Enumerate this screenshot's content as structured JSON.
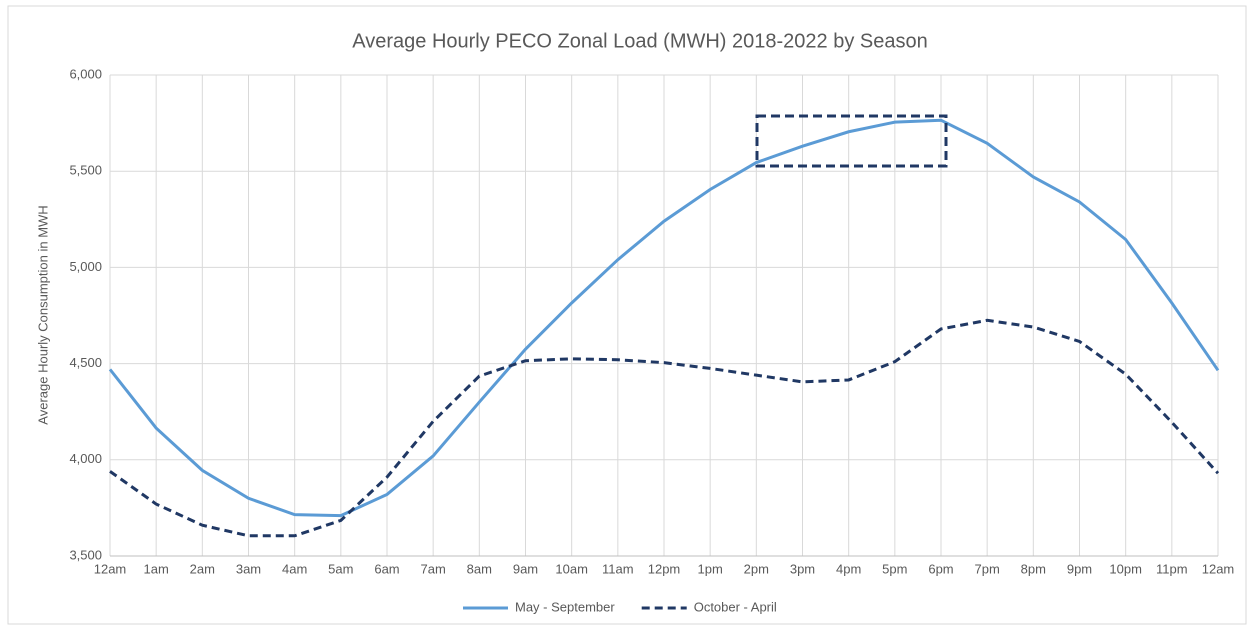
{
  "chart_data": {
    "type": "line",
    "title": "Average Hourly PECO Zonal Load (MWH) 2018-2022 by Season",
    "ylabel": "Average Hourly Consumption in MWH",
    "categories": [
      "12am",
      "1am",
      "2am",
      "3am",
      "4am",
      "5am",
      "6am",
      "7am",
      "8am",
      "9am",
      "10am",
      "11am",
      "12pm",
      "1pm",
      "2pm",
      "3pm",
      "4pm",
      "5pm",
      "6pm",
      "7pm",
      "8pm",
      "9pm",
      "10pm",
      "11pm",
      "12am"
    ],
    "series": [
      {
        "name": "May - September",
        "color": "#5b9bd5",
        "dash": false,
        "values": [
          4470,
          4165,
          3945,
          3800,
          3715,
          3710,
          3820,
          4020,
          4300,
          4575,
          4815,
          5040,
          5240,
          5405,
          5545,
          5630,
          5705,
          5755,
          5765,
          5645,
          5470,
          5340,
          5145,
          4815,
          4465
        ]
      },
      {
        "name": "October - April",
        "color": "#203864",
        "dash": true,
        "values": [
          3940,
          3770,
          3660,
          3605,
          3605,
          3685,
          3910,
          4200,
          4435,
          4515,
          4525,
          4520,
          4505,
          4475,
          4440,
          4405,
          4415,
          4510,
          4680,
          4725,
          4690,
          4615,
          4445,
          4195,
          3930
        ]
      }
    ],
    "ylim": [
      3500,
      6000
    ],
    "yticks": [
      {
        "value": 3500,
        "label": "3,500"
      },
      {
        "value": 4000,
        "label": "4,000"
      },
      {
        "value": 4500,
        "label": "4,500"
      },
      {
        "value": 5000,
        "label": "5,000"
      },
      {
        "value": 5500,
        "label": "5,500"
      },
      {
        "value": 6000,
        "label": "6,000"
      }
    ],
    "grid": true,
    "legend": "bottom"
  }
}
